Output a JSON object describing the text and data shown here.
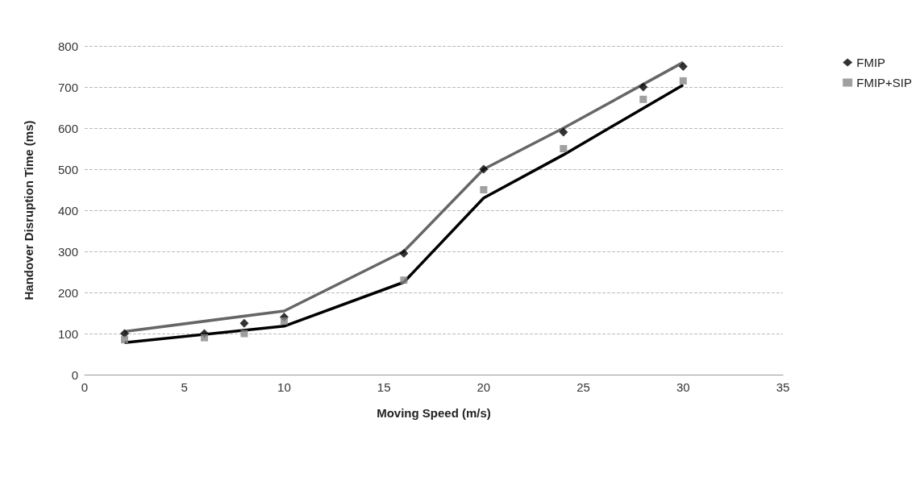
{
  "chart_data": {
    "type": "scatter",
    "xlabel": "Moving Speed (m/s)",
    "ylabel": "Handover Disruption Time (ms)",
    "xlim": [
      0,
      35
    ],
    "xticks": [
      0,
      5,
      10,
      15,
      20,
      25,
      30,
      35
    ],
    "ylim": [
      0,
      800
    ],
    "yticks": [
      0,
      100,
      200,
      300,
      400,
      500,
      600,
      700,
      800
    ],
    "grid": "y",
    "legend": "top right",
    "series": [
      {
        "type": "line",
        "color": "#666666",
        "x": [
          2,
          10,
          16,
          20,
          24,
          30
        ],
        "values": [
          105,
          155,
          300,
          500,
          600,
          760
        ],
        "marker": "none",
        "line_style": "solid"
      },
      {
        "type": "line",
        "color": "#000000",
        "x": [
          2,
          10,
          16,
          20,
          24,
          30
        ],
        "values": [
          78,
          118,
          225,
          430,
          535,
          705
        ],
        "marker": "none",
        "line_style": "solid"
      },
      {
        "name": "FMIP",
        "type": "scatter",
        "color": "#000000",
        "marker": "diamond",
        "x": [
          2,
          6,
          8,
          10,
          16,
          20,
          24,
          28,
          30
        ],
        "values": [
          100,
          100,
          125,
          140,
          295,
          500,
          590,
          700,
          750
        ]
      },
      {
        "name": "FMIP+SIP",
        "type": "scatter",
        "color": "#888888",
        "marker": "square",
        "x": [
          2,
          6,
          8,
          10,
          16,
          20,
          24,
          28,
          30
        ],
        "values": [
          85,
          90,
          100,
          130,
          230,
          450,
          550,
          670,
          715
        ]
      }
    ]
  }
}
